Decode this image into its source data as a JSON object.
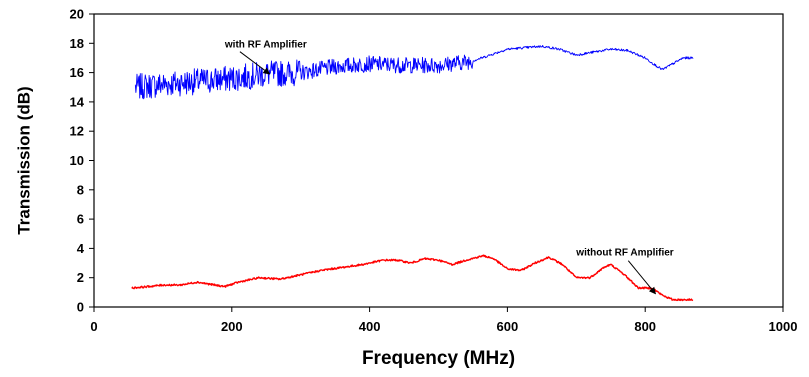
{
  "chart_data": {
    "type": "line",
    "title": "",
    "xlabel": "Frequency (MHz)",
    "ylabel": "Transmission (dB)",
    "xlim": [
      0,
      1000
    ],
    "ylim": [
      0,
      20
    ],
    "xticks": [
      0,
      200,
      400,
      600,
      800,
      1000
    ],
    "yticks": [
      0,
      2,
      4,
      6,
      8,
      10,
      12,
      14,
      16,
      18,
      20
    ],
    "xtick_labels": [
      "0",
      "200",
      "400",
      "600",
      "800",
      "1000"
    ],
    "ytick_labels": [
      "0",
      "2",
      "4",
      "6",
      "8",
      "10",
      "12",
      "14",
      "16",
      "18",
      "20"
    ],
    "grid": false,
    "legend": "none",
    "series": [
      {
        "color": "#0000ff",
        "noise": "high-below-550",
        "x": [
          60,
          100,
          150,
          200,
          250,
          300,
          350,
          400,
          450,
          500,
          550,
          600,
          625,
          650,
          675,
          700,
          725,
          750,
          775,
          800,
          815,
          825,
          840,
          855,
          870
        ],
        "y": [
          15.0,
          15.2,
          15.4,
          15.6,
          15.9,
          16.0,
          16.4,
          16.6,
          16.5,
          16.5,
          16.8,
          17.6,
          17.7,
          17.8,
          17.6,
          17.2,
          17.4,
          17.6,
          17.5,
          17.0,
          16.5,
          16.2,
          16.6,
          17.0,
          17.0
        ]
      },
      {
        "color": "#ff0000",
        "noise": "low",
        "x": [
          55,
          80,
          100,
          125,
          150,
          175,
          190,
          210,
          240,
          270,
          300,
          330,
          360,
          390,
          420,
          440,
          460,
          480,
          500,
          520,
          540,
          565,
          580,
          600,
          620,
          640,
          660,
          680,
          700,
          720,
          740,
          750,
          770,
          790,
          810,
          825,
          840,
          860,
          870
        ],
        "y": [
          1.3,
          1.4,
          1.5,
          1.5,
          1.7,
          1.5,
          1.4,
          1.7,
          2.0,
          1.9,
          2.2,
          2.5,
          2.7,
          2.9,
          3.2,
          3.2,
          3.0,
          3.3,
          3.2,
          2.9,
          3.2,
          3.5,
          3.3,
          2.6,
          2.5,
          3.0,
          3.4,
          2.9,
          2.0,
          2.0,
          2.7,
          2.9,
          2.2,
          1.3,
          1.3,
          0.8,
          0.5,
          0.5,
          0.5
        ]
      }
    ],
    "annotations": [
      {
        "text": "with RF Amplifier",
        "x": 190,
        "y": 17.7,
        "arrow_to": [
          255,
          15.9
        ]
      },
      {
        "text": "without RF Amplifier",
        "x": 700,
        "y": 3.5,
        "arrow_to": [
          815,
          0.9
        ]
      }
    ]
  }
}
